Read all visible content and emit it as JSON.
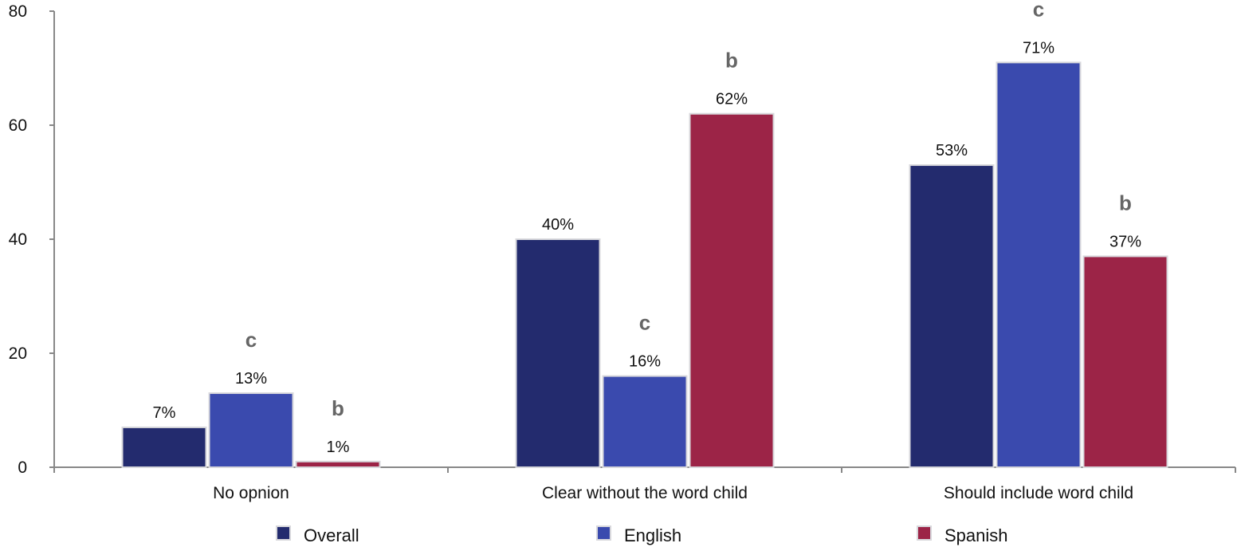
{
  "chart_data": {
    "type": "bar",
    "title": "",
    "xlabel": "",
    "ylabel": "",
    "ylim": [
      0,
      80
    ],
    "yticks": [
      0,
      20,
      40,
      60,
      80
    ],
    "categories": [
      "No opnion",
      "Clear without the word child",
      "Should include word child"
    ],
    "series": [
      {
        "name": "Overall",
        "color": "#232b6e",
        "values": [
          7,
          40,
          53
        ],
        "labels": [
          "7%",
          "40%",
          "53%"
        ],
        "sig": [
          "",
          "",
          ""
        ]
      },
      {
        "name": "English",
        "color": "#3a4aae",
        "values": [
          13,
          16,
          71
        ],
        "labels": [
          "13%",
          "16%",
          "71%"
        ],
        "sig": [
          "c",
          "c",
          "c"
        ]
      },
      {
        "name": "Spanish",
        "color": "#9c2447",
        "values": [
          1,
          62,
          37
        ],
        "labels": [
          "1%",
          "62%",
          "37%"
        ],
        "sig": [
          "b",
          "b",
          "b"
        ]
      }
    ],
    "grid": false,
    "legend": "bottom"
  }
}
